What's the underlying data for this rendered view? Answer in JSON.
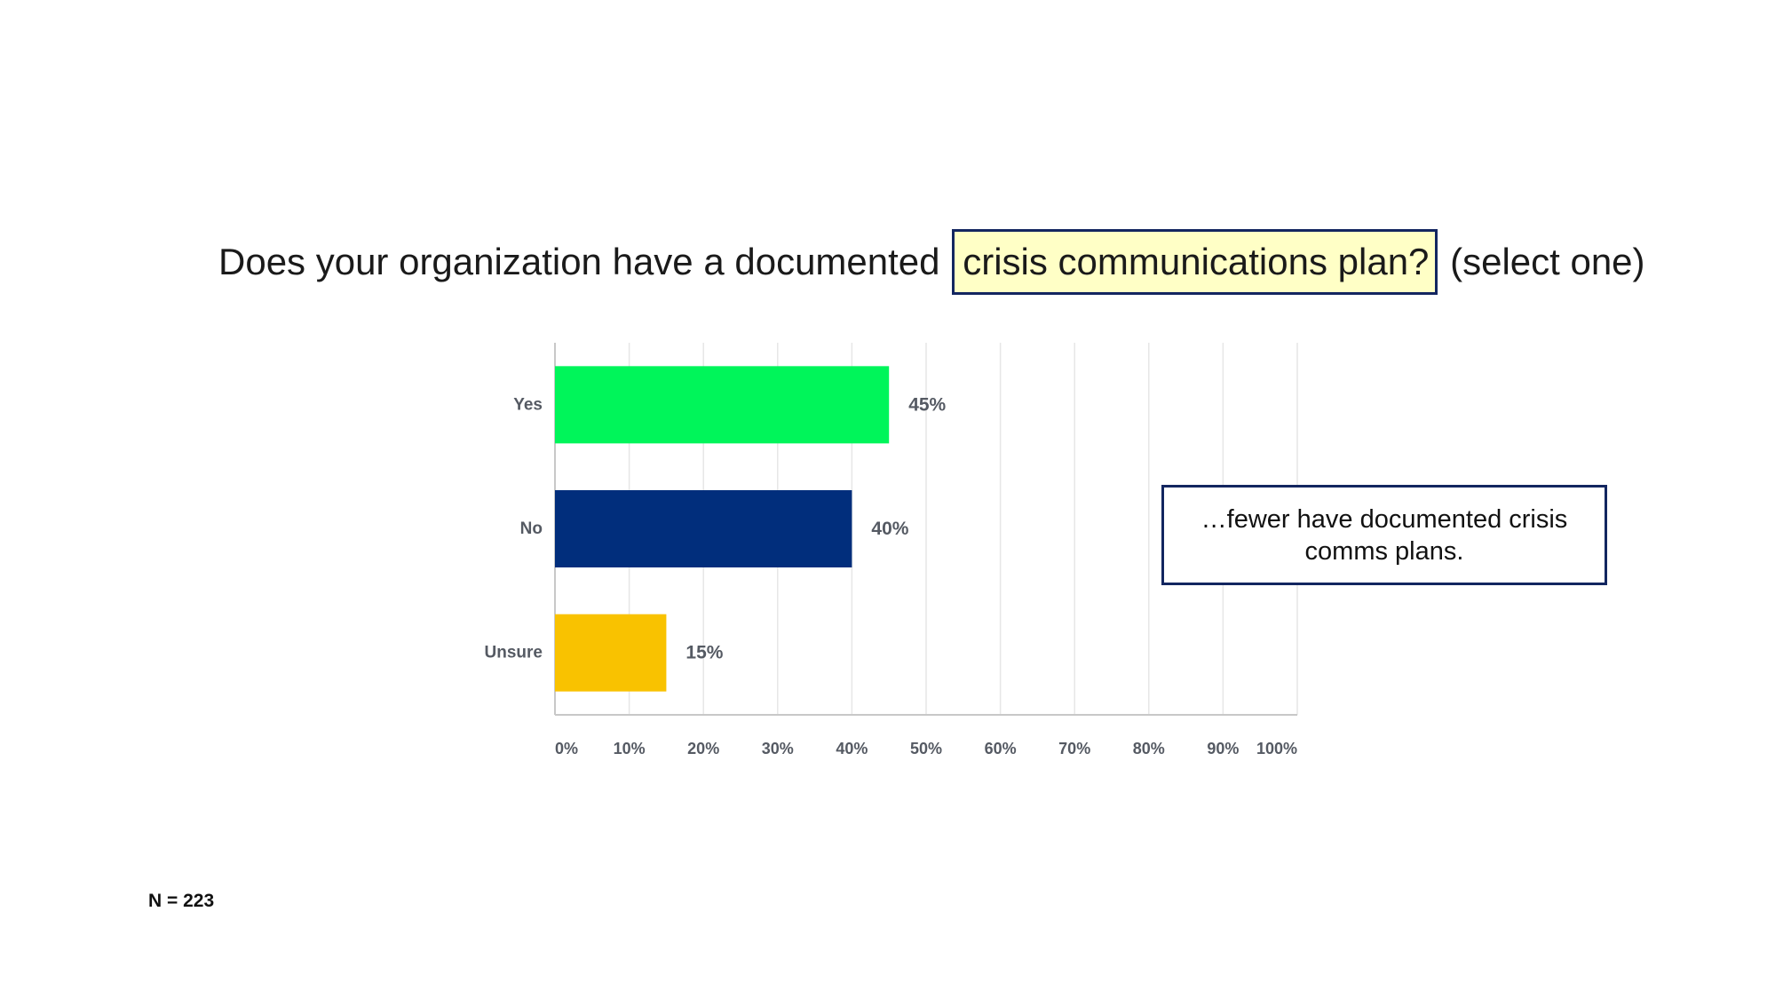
{
  "title": {
    "before": "Does your organization have a documented",
    "highlight": "crisis communications plan?",
    "after": "(select one)"
  },
  "callout": "…fewer have documented crisis comms plans.",
  "sample_size": "N = 223",
  "chart_data": {
    "type": "bar",
    "orientation": "horizontal",
    "categories": [
      "Yes",
      "No",
      "Unsure"
    ],
    "values": [
      45,
      40,
      15
    ],
    "value_labels": [
      "45%",
      "40%",
      "15%"
    ],
    "colors": [
      "#00f55a",
      "#012e7c",
      "#f9c200"
    ],
    "xlim": [
      0,
      100
    ],
    "x_ticks": [
      "0%",
      "10%",
      "20%",
      "30%",
      "40%",
      "50%",
      "60%",
      "70%",
      "80%",
      "90%",
      "100%"
    ],
    "grid": true,
    "xlabel": "",
    "ylabel": ""
  }
}
